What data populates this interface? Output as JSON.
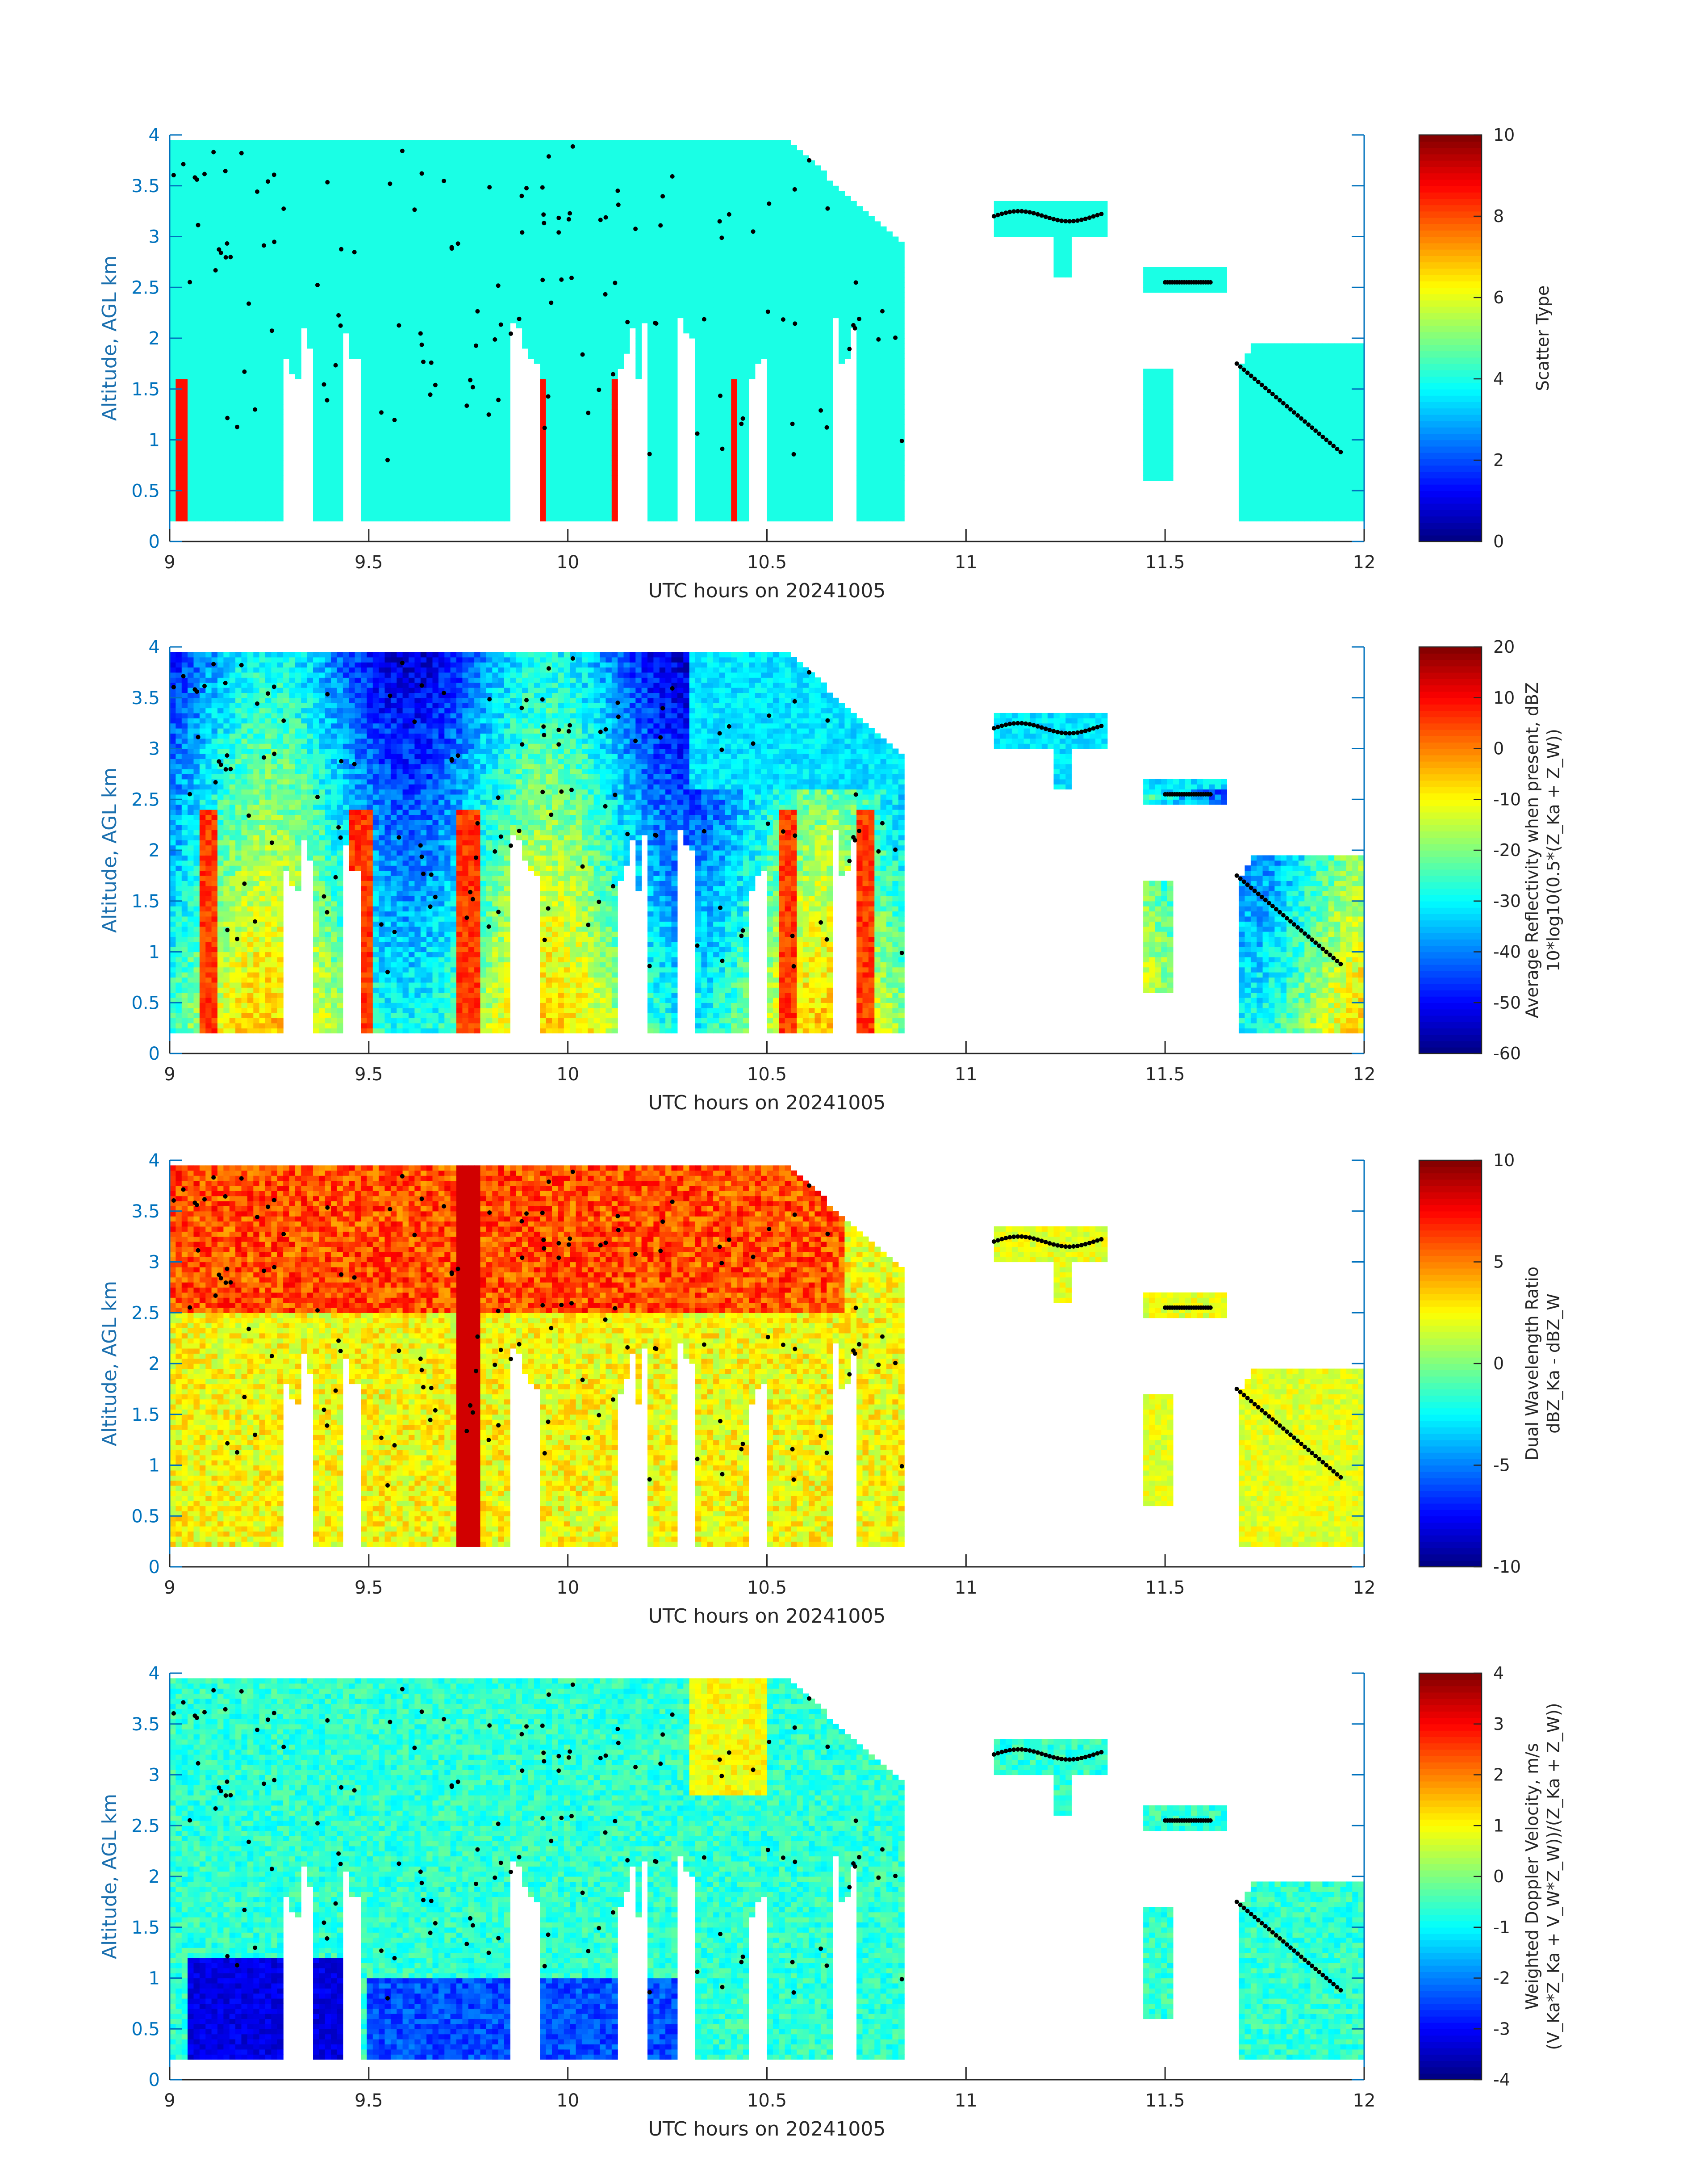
{
  "colors": {
    "axis_y": "#0072bd",
    "axis_x": "#262626",
    "marker": "#000000",
    "background": "#ffffff"
  },
  "chart_data": [
    {
      "type": "heatmap",
      "xlabel": "UTC hours on 20241005",
      "ylabel": "Altitude, AGL km",
      "xlim": [
        9,
        12
      ],
      "ylim": [
        0,
        4
      ],
      "xticks": [
        "9",
        "9.5",
        "10",
        "10.5",
        "11",
        "11.5",
        "12"
      ],
      "yticks": [
        "0",
        "0.5",
        "1",
        "1.5",
        "2",
        "2.5",
        "3",
        "3.5",
        "4"
      ],
      "colorbar": {
        "label": "Scatter Type",
        "label2": "",
        "ticks": [
          "0",
          "2",
          "4",
          "6",
          "8",
          "10"
        ],
        "range": [
          0,
          10
        ]
      },
      "colormap": "jet"
    },
    {
      "type": "heatmap",
      "xlabel": "UTC hours on 20241005",
      "ylabel": "Altitude, AGL km",
      "xlim": [
        9,
        12
      ],
      "ylim": [
        0,
        4
      ],
      "xticks": [
        "9",
        "9.5",
        "10",
        "10.5",
        "11",
        "11.5",
        "12"
      ],
      "yticks": [
        "0",
        "0.5",
        "1",
        "1.5",
        "2",
        "2.5",
        "3",
        "3.5",
        "4"
      ],
      "colorbar": {
        "label": "Average Reflectivity when present, dBZ",
        "label2": "10*log10(0.5*(Z_Ka + Z_W))",
        "ticks": [
          "-60",
          "-50",
          "-40",
          "-30",
          "-20",
          "-10",
          "0",
          "10",
          "20"
        ],
        "range": [
          -60,
          20
        ]
      },
      "colormap": "jet"
    },
    {
      "type": "heatmap",
      "xlabel": "UTC hours on 20241005",
      "ylabel": "Altitude, AGL km",
      "xlim": [
        9,
        12
      ],
      "ylim": [
        0,
        4
      ],
      "xticks": [
        "9",
        "9.5",
        "10",
        "10.5",
        "11",
        "11.5",
        "12"
      ],
      "yticks": [
        "0",
        "0.5",
        "1",
        "1.5",
        "2",
        "2.5",
        "3",
        "3.5",
        "4"
      ],
      "colorbar": {
        "label": "Dual Wavelength Ratio",
        "label2": "dBZ_Ka - dBZ_W",
        "ticks": [
          "-10",
          "-5",
          "0",
          "5",
          "10"
        ],
        "range": [
          -10,
          10
        ]
      },
      "colormap": "jet"
    },
    {
      "type": "heatmap",
      "xlabel": "UTC hours on 20241005",
      "ylabel": "Altitude, AGL km",
      "xlim": [
        9,
        12
      ],
      "ylim": [
        0,
        4
      ],
      "xticks": [
        "9",
        "9.5",
        "10",
        "10.5",
        "11",
        "11.5",
        "12"
      ],
      "yticks": [
        "0",
        "0.5",
        "1",
        "1.5",
        "2",
        "2.5",
        "3",
        "3.5",
        "4"
      ],
      "colorbar": {
        "label": "Weighted Doppler Velocity, m/s",
        "label2": "(V_Ka*Z_Ka + V_W*Z_W))/(Z_Ka + Z_W))",
        "ticks": [
          "-4",
          "-3",
          "-2",
          "-1",
          "0",
          "1",
          "2",
          "3",
          "4"
        ],
        "range": [
          -4,
          4
        ]
      },
      "colormap": "jet"
    }
  ]
}
